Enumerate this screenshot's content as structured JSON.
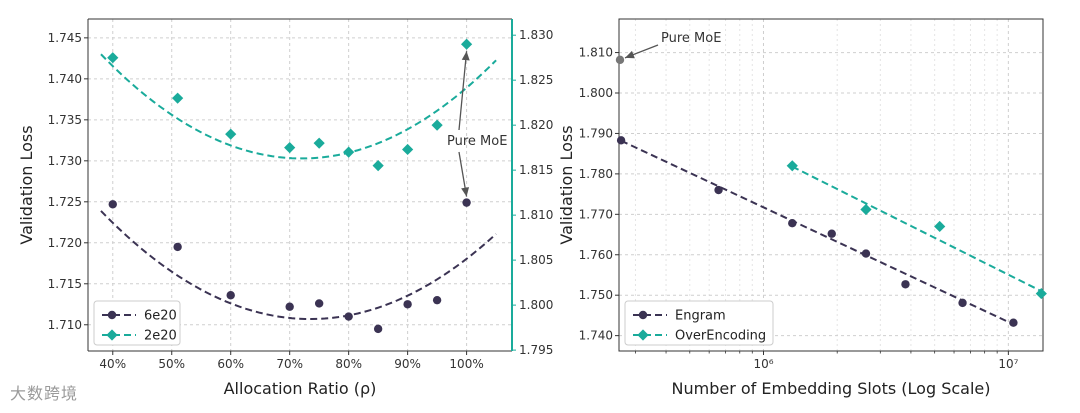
{
  "colors": {
    "dark": "#3b3353",
    "teal": "#1aab9b",
    "grid": "#cfcfcf",
    "spine": "#333333",
    "annot_marker": "#777777",
    "arrow": "#555555"
  },
  "watermark": "大数跨境",
  "chart_data": [
    {
      "type": "scatter",
      "title": "",
      "xlabel": "Allocation Ratio (ρ)",
      "ylabel": "Validation Loss",
      "grid": true,
      "legend_position": "lower-left",
      "x_ticks": [
        {
          "value": 40,
          "label": "40%"
        },
        {
          "value": 50,
          "label": "50%"
        },
        {
          "value": 60,
          "label": "60%"
        },
        {
          "value": 70,
          "label": "70%"
        },
        {
          "value": 80,
          "label": "80%"
        },
        {
          "value": 90,
          "label": "90%"
        },
        {
          "value": 100,
          "label": "100%"
        }
      ],
      "y_left_ticks": [
        "1.710",
        "1.715",
        "1.720",
        "1.725",
        "1.730",
        "1.735",
        "1.740",
        "1.745"
      ],
      "y_right_ticks": [
        "1.795",
        "1.800",
        "1.805",
        "1.810",
        "1.815",
        "1.820",
        "1.825",
        "1.830"
      ],
      "xlim": [
        35.8,
        107.7
      ],
      "ylim_left": [
        1.7068,
        1.7473
      ],
      "ylim_right": [
        1.7949,
        1.8318
      ],
      "series": [
        {
          "name": "6e20",
          "axis": "left",
          "color_key": "dark",
          "marker": "circle",
          "x": [
            40,
            51,
            60,
            70,
            75,
            80,
            85,
            90,
            95,
            100
          ],
          "y": [
            1.7247,
            1.7195,
            1.7136,
            1.7122,
            1.7126,
            1.711,
            1.7095,
            1.7125,
            1.713,
            1.7249
          ],
          "fit": {
            "x_min": 38,
            "x_max": 105,
            "a": 1.046e-05,
            "h": 73.5,
            "k": 1.7107
          }
        },
        {
          "name": "2e20",
          "axis": "right",
          "color_key": "teal",
          "marker": "diamond",
          "x": [
            40,
            51,
            60,
            70,
            75,
            80,
            85,
            90,
            95,
            100
          ],
          "y": [
            1.8275,
            1.823,
            1.819,
            1.8175,
            1.818,
            1.817,
            1.8155,
            1.8173,
            1.82,
            1.829
          ],
          "fit": {
            "x_min": 38,
            "x_max": 105,
            "a": 1.002e-05,
            "h": 72,
            "k": 1.8163
          }
        }
      ],
      "annotation": {
        "text": "Pure MoE",
        "x": 100
      }
    },
    {
      "type": "scatter",
      "title": "",
      "xlabel": "Number of Embedding Slots (Log Scale)",
      "ylabel": "Validation Loss",
      "x_scale": "log",
      "grid": true,
      "legend_position": "lower-left",
      "x_ticks": [
        {
          "value": 1000000,
          "label": "10⁶"
        },
        {
          "value": 10000000,
          "label": "10⁷"
        }
      ],
      "y_ticks": [
        "1.740",
        "1.750",
        "1.760",
        "1.770",
        "1.780",
        "1.790",
        "1.800",
        "1.810"
      ],
      "xlim": [
        257000,
        13850000
      ],
      "ylim": [
        1.7362,
        1.8183
      ],
      "series": [
        {
          "name": "Engram",
          "color_key": "dark",
          "marker": "circle",
          "x": [
            262144,
            655360,
            1310720,
            1900000,
            2621440,
            3800000,
            6500000,
            10485760
          ],
          "y": [
            1.7883,
            1.776,
            1.7678,
            1.7652,
            1.7603,
            1.7527,
            1.7481,
            1.7432
          ],
          "fit": {
            "x_start": 262144,
            "y_start": 1.7882,
            "x_end": 10485760,
            "y_end": 1.7428
          }
        },
        {
          "name": "OverEncoding",
          "color_key": "teal",
          "marker": "diamond",
          "x": [
            1310720,
            2621440,
            5242880,
            13631488
          ],
          "y": [
            1.782,
            1.7712,
            1.767,
            1.7504
          ],
          "fit": {
            "x_start": 1310720,
            "y_start": 1.7818,
            "x_end": 13631488,
            "y_end": 1.751
          }
        }
      ],
      "annotation": {
        "text": "Pure MoE",
        "x": 257000,
        "y": 1.8082
      }
    }
  ]
}
